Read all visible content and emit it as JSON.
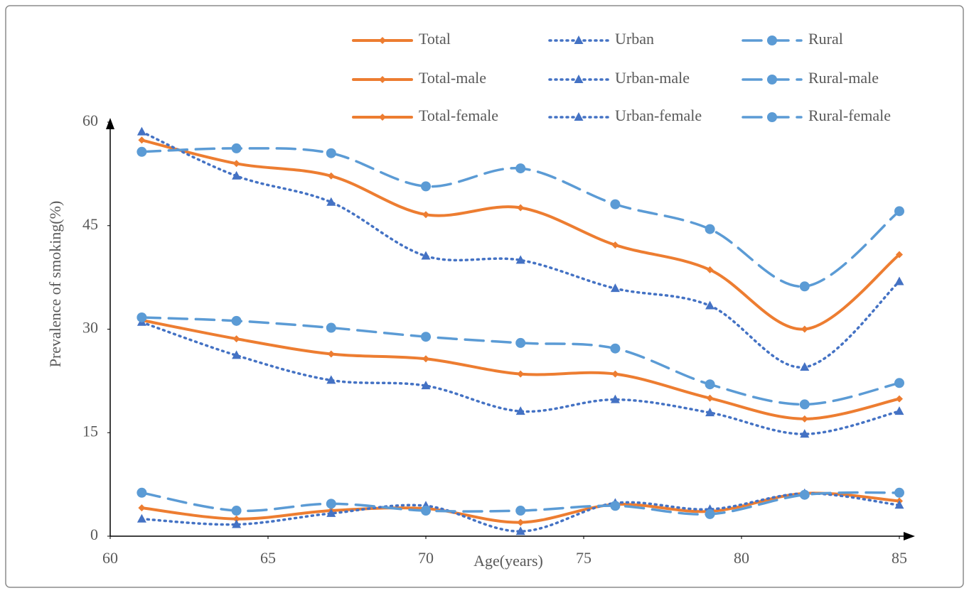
{
  "chart_data": {
    "type": "line",
    "x_label": "Age(years)",
    "y_label": "Prevalence of smoking(%)",
    "x": [
      61,
      64,
      67,
      70,
      73,
      76,
      79,
      82,
      85
    ],
    "xlim": [
      60,
      85
    ],
    "xticks": [
      60,
      65,
      70,
      75,
      80,
      85
    ],
    "ylim": [
      0,
      60
    ],
    "yticks": [
      0,
      15,
      30,
      45,
      60
    ],
    "grid": false,
    "legend": "top-right",
    "series": [
      {
        "name": "Total",
        "color": "#ed7d31",
        "line_style": "solid",
        "marker": "diamond",
        "values": [
          57.4,
          54.0,
          52.2,
          46.6,
          47.6,
          42.2,
          38.6,
          30.0,
          40.8
        ]
      },
      {
        "name": "Urban",
        "color": "#4472c4",
        "line_style": "dotted",
        "marker": "triangle",
        "values": [
          58.6,
          52.2,
          48.4,
          40.6,
          40.0,
          35.9,
          33.4,
          24.5,
          36.9
        ]
      },
      {
        "name": "Rural",
        "color": "#5b9bd5",
        "line_style": "dashed",
        "marker": "circle",
        "values": [
          55.7,
          56.2,
          55.5,
          50.7,
          53.3,
          48.1,
          44.5,
          36.2,
          47.1
        ]
      },
      {
        "name": "Total-male",
        "color": "#ed7d31",
        "line_style": "solid",
        "marker": "diamond",
        "values": [
          31.3,
          28.6,
          26.4,
          25.7,
          23.5,
          23.5,
          20.0,
          17.0,
          19.9
        ]
      },
      {
        "name": "Urban-male",
        "color": "#4472c4",
        "line_style": "dotted",
        "marker": "triangle",
        "values": [
          31.0,
          26.2,
          22.6,
          21.8,
          18.1,
          19.8,
          17.9,
          14.8,
          18.1
        ]
      },
      {
        "name": "Rural-male",
        "color": "#5b9bd5",
        "line_style": "dashed",
        "marker": "circle",
        "values": [
          31.7,
          31.2,
          30.2,
          28.9,
          28.0,
          27.2,
          22.0,
          19.1,
          22.2
        ]
      },
      {
        "name": "Total-female",
        "color": "#ed7d31",
        "line_style": "solid",
        "marker": "diamond",
        "values": [
          4.1,
          2.5,
          3.7,
          4.0,
          2.0,
          4.6,
          3.6,
          6.2,
          5.1
        ]
      },
      {
        "name": "Urban-female",
        "color": "#4472c4",
        "line_style": "dotted",
        "marker": "triangle",
        "values": [
          2.5,
          1.7,
          3.3,
          4.4,
          0.7,
          4.8,
          3.9,
          6.2,
          4.5
        ]
      },
      {
        "name": "Rural-female",
        "color": "#5b9bd5",
        "line_style": "dashed",
        "marker": "circle",
        "values": [
          6.3,
          3.7,
          4.7,
          3.7,
          3.7,
          4.4,
          3.2,
          6.0,
          6.3
        ]
      }
    ]
  }
}
